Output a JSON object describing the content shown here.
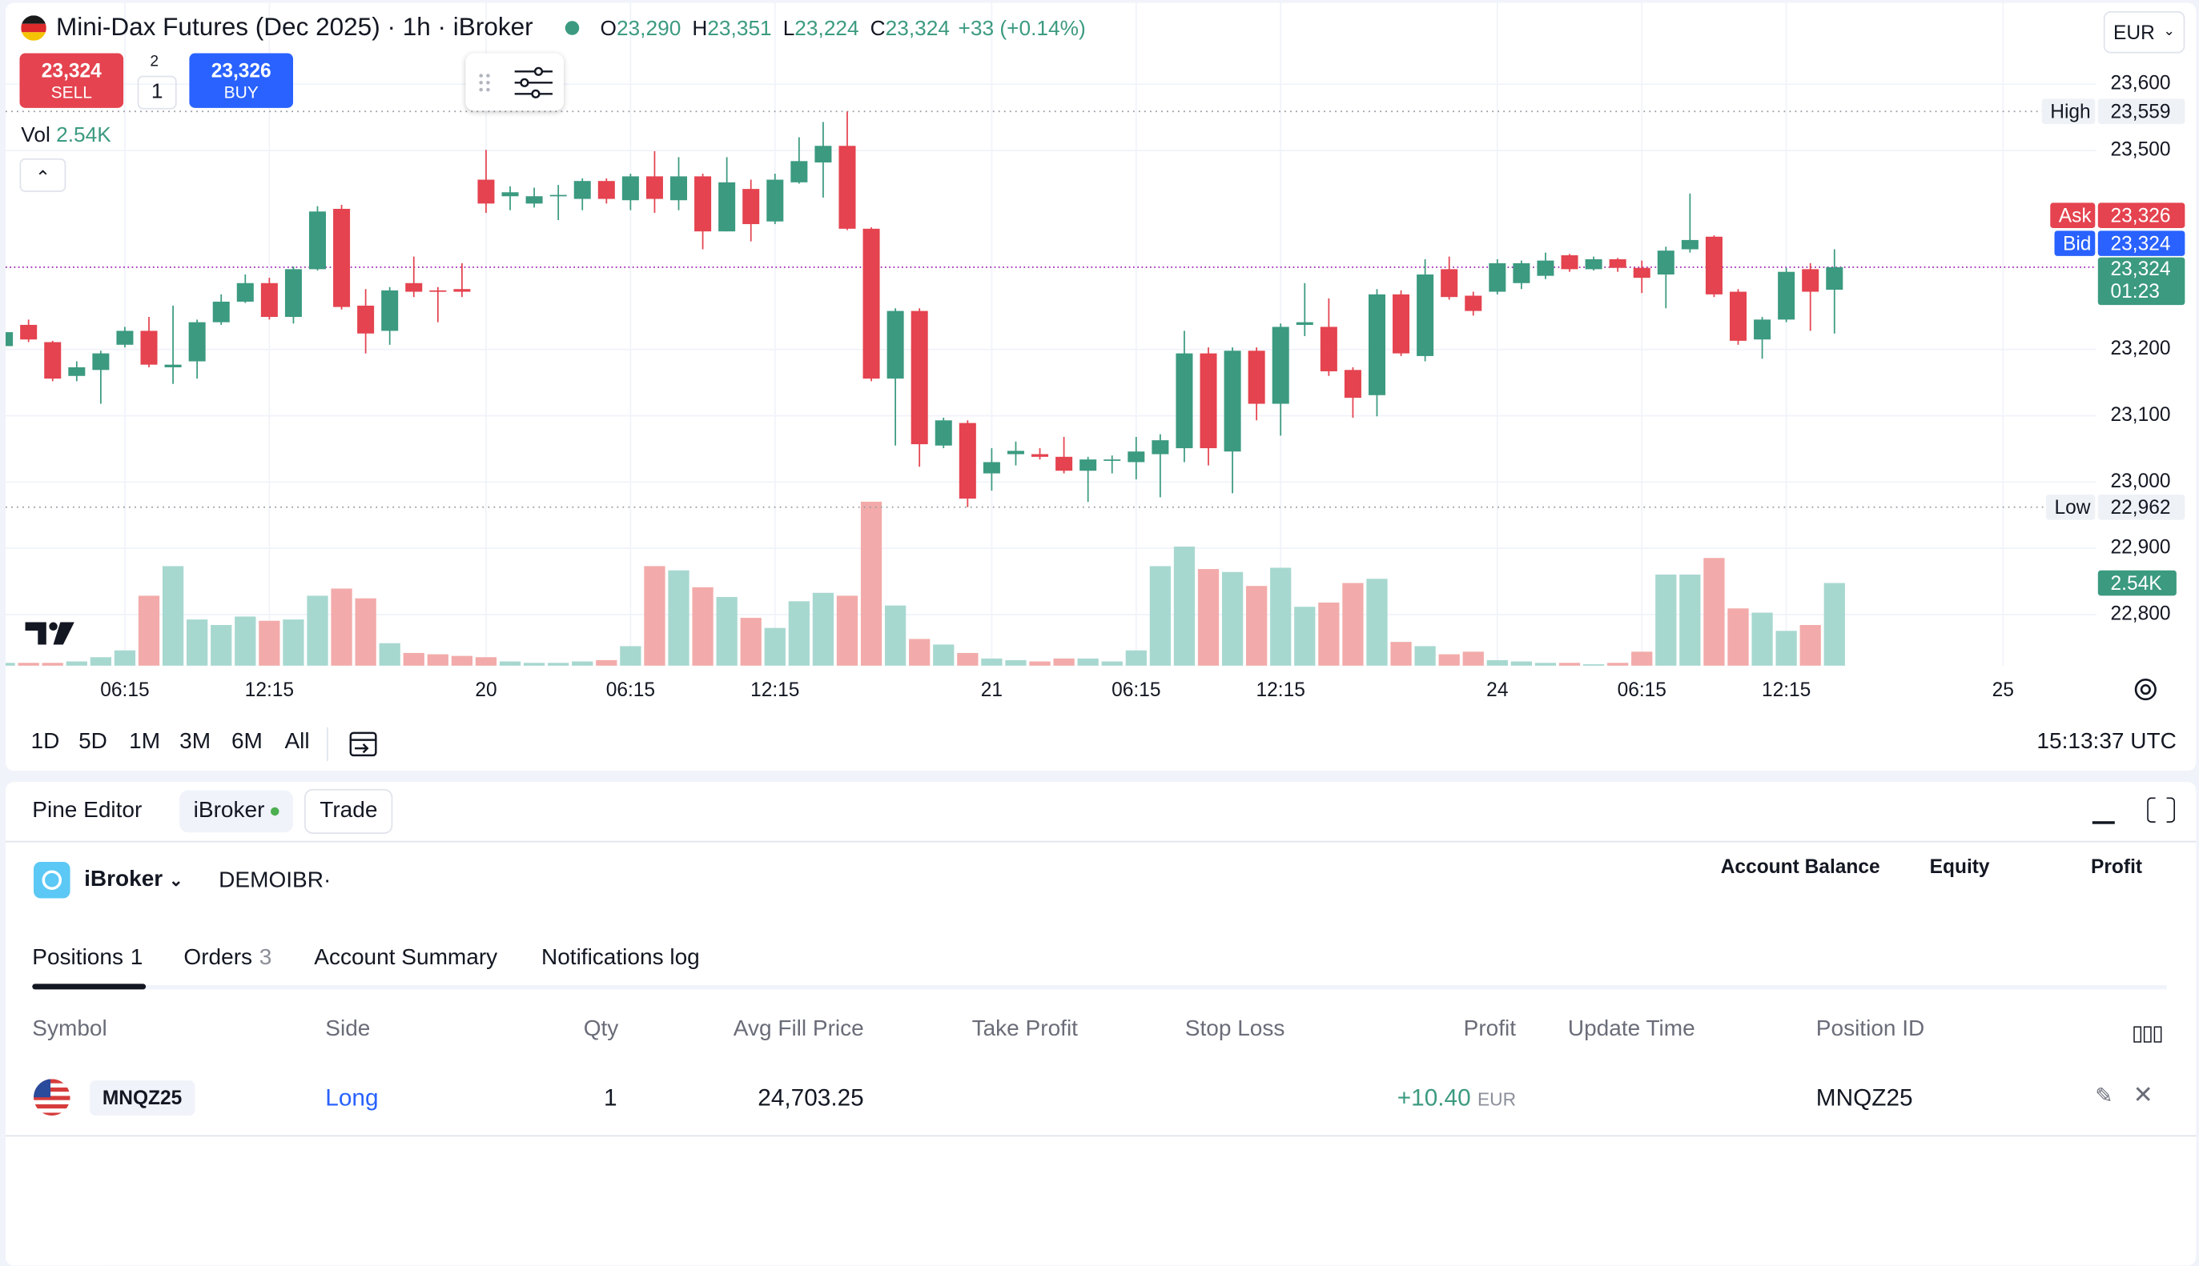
{
  "header": {
    "symbol": "Mini-Dax Futures (Dec 2025) · 1h · iBroker",
    "ohlc": [
      {
        "label": "O",
        "value": "23,290"
      },
      {
        "label": "H",
        "value": "23,351"
      },
      {
        "label": "L",
        "value": "23,224"
      },
      {
        "label": "C",
        "value": "23,324"
      }
    ],
    "change": "+33 (+0.14%)",
    "currency": "EUR"
  },
  "trade": {
    "sell_price": "23,324",
    "sell": "SELL",
    "spread": "2",
    "qty": "1",
    "buy_price": "23,326",
    "buy": "BUY"
  },
  "chart_data": {
    "type": "candlestick",
    "categories": [
      null,
      null,
      null,
      null,
      null,
      "06:15",
      null,
      null,
      null,
      null,
      null,
      "12:15",
      null,
      null,
      null,
      null,
      null,
      null,
      null,
      null,
      "20",
      null,
      null,
      null,
      null,
      null,
      "06:15",
      null,
      null,
      null,
      null,
      null,
      "12:15",
      null,
      null,
      null,
      null,
      null,
      null,
      null,
      null,
      "21",
      null,
      null,
      null,
      null,
      null,
      "06:15",
      null,
      null,
      null,
      null,
      null,
      "12:15",
      null,
      null,
      null,
      null,
      null,
      null,
      null,
      null,
      "24",
      null,
      null,
      null,
      null,
      null,
      "06:15",
      null,
      null,
      null,
      null,
      null,
      "12:15",
      null,
      null,
      null,
      null,
      null,
      null,
      null,
      null,
      "25"
    ],
    "open": [
      23205,
      23237,
      23211,
      23160,
      23169,
      23207,
      23228,
      23173,
      23182,
      23241,
      23272,
      23300,
      23249,
      23321,
      23412,
      23266,
      23228,
      23300,
      23289,
      23291,
      23456,
      23431,
      23420,
      23431,
      23427,
      23454,
      23425,
      23461,
      23425,
      23461,
      23378,
      23442,
      23393,
      23452,
      23482,
      23507,
      23382,
      23156,
      23258,
      23055,
      23089,
      23013,
      23042,
      23042,
      23038,
      23017,
      23032,
      23030,
      23042,
      23051,
      23194,
      23046,
      23198,
      23118,
      23237,
      23234,
      23169,
      23131,
      23283,
      23190,
      23321,
      23281,
      23287,
      23300,
      23311,
      23342,
      23321,
      23336,
      23323,
      23313,
      23351,
      23370,
      23287,
      23215,
      23245,
      23321,
      23290,
      null,
      null,
      null,
      null,
      null,
      null,
      null
    ],
    "high": [
      23230,
      23245,
      23213,
      23182,
      23198,
      23234,
      23249,
      23266,
      23245,
      23283,
      23313,
      23308,
      23325,
      23416,
      23418,
      23291,
      23294,
      23340,
      23294,
      23330,
      23501,
      23446,
      23444,
      23448,
      23458,
      23458,
      23465,
      23499,
      23490,
      23465,
      23490,
      23456,
      23465,
      23520,
      23543,
      23559,
      23384,
      23262,
      23262,
      23097,
      23093,
      23051,
      23061,
      23051,
      23068,
      23038,
      23040,
      23068,
      23072,
      23228,
      23203,
      23203,
      23203,
      23239,
      23300,
      23277,
      23173,
      23291,
      23289,
      23336,
      23340,
      23287,
      23336,
      23334,
      23346,
      23344,
      23340,
      23338,
      23334,
      23355,
      23435,
      23372,
      23291,
      23249,
      23323,
      23330,
      23351,
      null,
      null,
      null,
      null,
      null,
      null,
      null
    ],
    "low": [
      23200,
      23211,
      23152,
      23152,
      23118,
      23203,
      23173,
      23148,
      23156,
      23237,
      23270,
      23245,
      23239,
      23319,
      23260,
      23194,
      23207,
      23279,
      23241,
      23279,
      23406,
      23410,
      23414,
      23395,
      23410,
      23420,
      23410,
      23406,
      23410,
      23351,
      23378,
      23363,
      23389,
      23450,
      23429,
      23380,
      23152,
      23055,
      23023,
      23051,
      22962,
      22987,
      23025,
      23034,
      23013,
      22970,
      23013,
      23004,
      22977,
      23030,
      23025,
      22983,
      23093,
      23070,
      23220,
      23160,
      23097,
      23099,
      23190,
      23182,
      23275,
      23251,
      23283,
      23291,
      23306,
      23317,
      23319,
      23317,
      23285,
      23262,
      23346,
      23279,
      23207,
      23186,
      23241,
      23228,
      23224,
      null,
      null,
      null,
      null,
      null,
      null,
      null
    ],
    "close": [
      23226,
      23215,
      23156,
      23173,
      23194,
      23228,
      23177,
      23177,
      23241,
      23272,
      23300,
      23249,
      23321,
      23408,
      23264,
      23224,
      23289,
      23287,
      23287,
      23287,
      23420,
      23437,
      23431,
      23433,
      23454,
      23427,
      23461,
      23427,
      23461,
      23378,
      23452,
      23389,
      23456,
      23484,
      23507,
      23382,
      23156,
      23258,
      23057,
      23093,
      22975,
      23030,
      23047,
      23038,
      23017,
      23034,
      23034,
      23046,
      23063,
      23194,
      23051,
      23198,
      23118,
      23234,
      23241,
      23167,
      23127,
      23283,
      23194,
      23313,
      23279,
      23258,
      23330,
      23330,
      23334,
      23321,
      23336,
      23323,
      23308,
      23349,
      23365,
      23283,
      23213,
      23245,
      23317,
      23287,
      23324,
      null,
      null,
      null,
      null,
      null,
      null,
      null
    ],
    "volume": {
      "name": "Vol",
      "last_value_label": "2.54K",
      "values": [
        86,
        86,
        86,
        130,
        260,
        470,
        2150,
        3060,
        1420,
        1250,
        1510,
        1380,
        1420,
        2150,
        2370,
        2070,
        690,
        390,
        350,
        300,
        260,
        130,
        86,
        86,
        130,
        170,
        600,
        3060,
        2930,
        2410,
        2110,
        1470,
        1160,
        1980,
        2240,
        2150,
        5040,
        1850,
        820,
        650,
        390,
        220,
        170,
        130,
        220,
        220,
        130,
        470,
        3060,
        3660,
        2970,
        2880,
        2450,
        3010,
        1810,
        1940,
        2540,
        2670,
        730,
        600,
        350,
        430,
        170,
        130,
        86,
        86,
        43,
        86,
        430,
        2800,
        2800,
        3310,
        1760,
        1630,
        1070,
        1250,
        2540,
        null,
        null,
        null,
        null,
        null,
        null,
        null
      ]
    },
    "ylim": [
      22723,
      23727
    ],
    "yticks": [
      {
        "value": 23600,
        "label": "23,600"
      },
      {
        "value": 23500,
        "label": "23,500"
      },
      {
        "value": 23200,
        "label": "23,200"
      },
      {
        "value": 23100,
        "label": "23,100"
      },
      {
        "value": 23000,
        "label": "23,000"
      },
      {
        "value": 22900,
        "label": "22,900"
      },
      {
        "value": 22800,
        "label": "22,800"
      }
    ],
    "grid": true,
    "up_color": "#3b9a80",
    "down_color": "#e4434f",
    "volume_up_color": "#a7d8d0",
    "volume_down_color": "#f2abaa",
    "high_line": {
      "label": "High",
      "value": 23559,
      "value_label": "23,559"
    },
    "low_line": {
      "label": "Low",
      "value": 22962,
      "value_label": "22,962"
    },
    "ask": {
      "label": "Ask",
      "value": 23326,
      "value_label": "23,326",
      "color": "#e4434f"
    },
    "bid": {
      "label": "Bid",
      "value": 23324,
      "value_label": "23,324",
      "color": "#2962ff"
    },
    "last": {
      "value": 23324,
      "value_label": "23,324",
      "countdown": "01:23",
      "color": "#3b9a80"
    }
  },
  "toolbar": {
    "ranges": [
      "1D",
      "5D",
      "1M",
      "3M",
      "6M",
      "All"
    ],
    "clock": "15:13:37 UTC"
  },
  "panel": {
    "tabs": [
      "Pine Editor",
      "iBroker",
      "Trade"
    ],
    "broker": "iBroker",
    "account": "DEMOIBR·",
    "summary": [
      "Account Balance",
      "Equity",
      "Profit"
    ],
    "subtabs": [
      {
        "label": "Positions",
        "count": "1"
      },
      {
        "label": "Orders",
        "count": "3"
      },
      {
        "label": "Account Summary"
      },
      {
        "label": "Notifications log"
      }
    ],
    "columns": [
      "Symbol",
      "Side",
      "Qty",
      "Avg Fill Price",
      "Take Profit",
      "Stop Loss",
      "Profit",
      "Update Time",
      "Position ID"
    ],
    "row": {
      "symbol": "MNQZ25",
      "side": "Long",
      "qty": "1",
      "avg_fill_price": "24,703.25",
      "profit": "+10.40",
      "profit_currency": "EUR",
      "position_id": "MNQZ25"
    }
  }
}
